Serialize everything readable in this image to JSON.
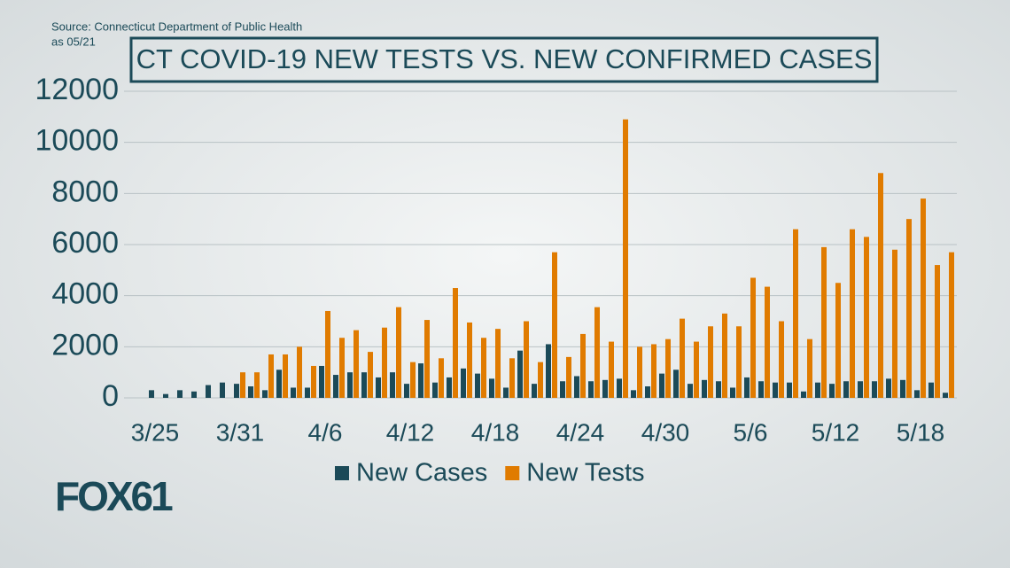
{
  "source": "Source: Connecticut Department of Public Health",
  "as_of": "as 05/21",
  "logo": "FOX61",
  "chart_data": {
    "type": "bar",
    "title": "CT COVID-19 NEW TESTS VS. NEW CONFIRMED CASES",
    "categories": [
      "3/25",
      null,
      null,
      null,
      null,
      null,
      "3/31",
      null,
      null,
      null,
      null,
      null,
      "4/6",
      null,
      null,
      null,
      null,
      null,
      "4/12",
      null,
      null,
      null,
      null,
      null,
      "4/18",
      null,
      null,
      null,
      null,
      null,
      "4/24",
      null,
      null,
      null,
      null,
      null,
      "4/30",
      null,
      null,
      null,
      null,
      null,
      "5/6",
      null,
      null,
      null,
      null,
      null,
      "5/12",
      null,
      null,
      null,
      null,
      null,
      "5/18",
      null,
      null
    ],
    "series": [
      {
        "name": "New Cases",
        "color": "#1b4a58",
        "values": [
          300,
          150,
          300,
          250,
          500,
          600,
          550,
          450,
          300,
          1100,
          400,
          400,
          1250,
          900,
          1000,
          1000,
          800,
          1000,
          550,
          1350,
          600,
          800,
          1150,
          950,
          750,
          400,
          1850,
          550,
          2100,
          650,
          850,
          650,
          700,
          750,
          300,
          450,
          950,
          1100,
          550,
          700,
          650,
          400,
          800,
          650,
          600,
          600,
          250,
          600,
          550,
          650,
          650,
          650,
          750,
          700,
          300,
          600,
          200
        ]
      },
      {
        "name": "New Tests",
        "color": "#e07b00",
        "values": [
          null,
          null,
          null,
          null,
          null,
          null,
          1000,
          1000,
          1700,
          1700,
          2000,
          1250,
          3400,
          2350,
          2650,
          1800,
          2750,
          3550,
          1400,
          3050,
          1550,
          4300,
          2950,
          2350,
          2700,
          1550,
          3000,
          1400,
          5700,
          1600,
          2500,
          3550,
          2200,
          10900,
          2000,
          2100,
          2300,
          3100,
          2200,
          2800,
          3300,
          2800,
          4700,
          4350,
          3000,
          6600,
          2300,
          5900,
          4500,
          6600,
          6300,
          8800,
          5800,
          7000,
          7800,
          5200,
          5700
        ]
      }
    ],
    "ylim": [
      0,
      12000
    ],
    "yticks": [
      0,
      2000,
      4000,
      6000,
      8000,
      10000,
      12000
    ],
    "grid": true
  }
}
